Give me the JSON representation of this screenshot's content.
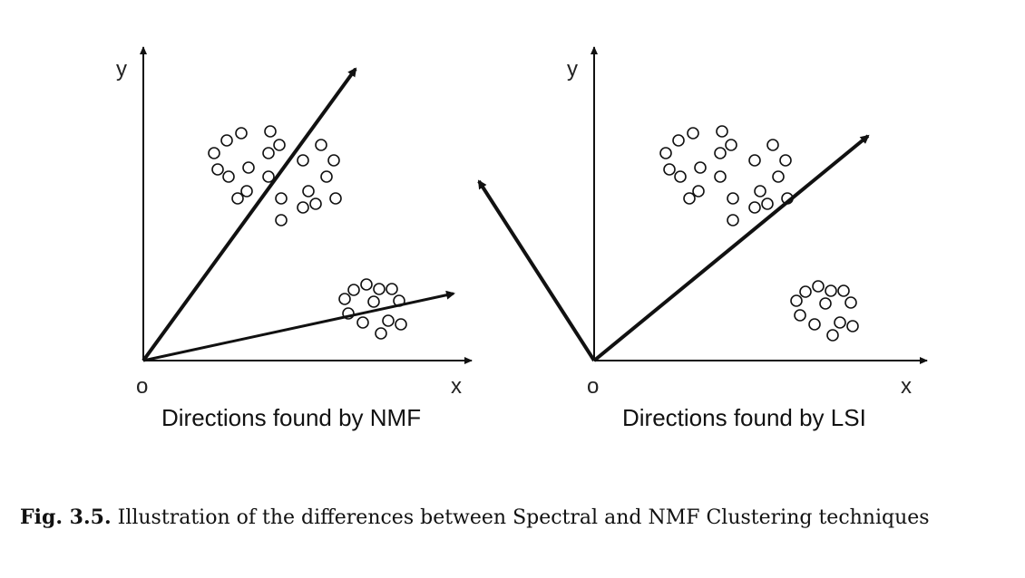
{
  "panels": [
    {
      "id": "nmf",
      "title": "Directions found by NMF",
      "origin_label": "o",
      "x_label": "x",
      "y_label": "y"
    },
    {
      "id": "lsi",
      "title": "Directions found by LSI",
      "origin_label": "o",
      "x_label": "x",
      "y_label": "y"
    }
  ],
  "caption": {
    "label": "Fig. 3.5.",
    "text": "Illustration of the differences between Spectral and NMF Clustering techniques"
  }
}
